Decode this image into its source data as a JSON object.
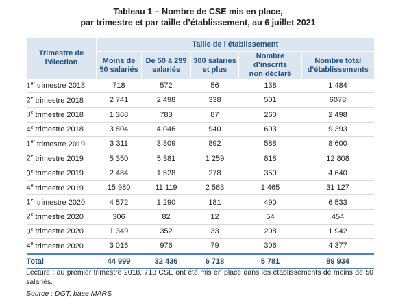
{
  "header": {
    "title": [
      "Tableau 1 – Nombre de CSE mis en place,",
      "par trimestre et par taille d’établissement, au 6 juillet 2021"
    ]
  },
  "table": {
    "group_header": "Taille de l’établissement",
    "columns": [
      [
        "Trimestre de",
        "l’élection"
      ],
      [
        "Moins de",
        "50 salariés"
      ],
      [
        "De 50 à 299",
        "salariés"
      ],
      [
        "300 salariés",
        "et plus"
      ],
      [
        "Nombre d’inscrits",
        "non déclaré"
      ],
      [
        "Nombre total",
        "d’établissements"
      ]
    ],
    "rows": [
      {
        "period": {
          "number": "1",
          "suffix": "er",
          "text": "trimestre 2018"
        },
        "cells": [
          "718",
          "572",
          "56",
          "138",
          "1 484"
        ]
      },
      {
        "period": {
          "number": "2",
          "suffix": "e",
          "text": "trimestre 2018"
        },
        "cells": [
          "2 741",
          "2 498",
          "338",
          "501",
          "6078"
        ]
      },
      {
        "period": {
          "number": "3",
          "suffix": "e",
          "text": "trimestre 2018"
        },
        "cells": [
          "1 368",
          "783",
          "87",
          "260",
          "2 498"
        ]
      },
      {
        "period": {
          "number": "4",
          "suffix": "e",
          "text": "trimestre 2018"
        },
        "cells": [
          "3 804",
          "4 046",
          "940",
          "603",
          "9 393"
        ]
      },
      {
        "period": {
          "number": "1",
          "suffix": "er",
          "text": "trimestre 2019"
        },
        "cells": [
          "3 311",
          "3 809",
          "892",
          "588",
          "8 600"
        ]
      },
      {
        "period": {
          "number": "2",
          "suffix": "e",
          "text": "trimestre 2019"
        },
        "cells": [
          "5 350",
          "5 381",
          "1 259",
          "818",
          "12 808"
        ]
      },
      {
        "period": {
          "number": "3",
          "suffix": "e",
          "text": "trimestre 2019"
        },
        "cells": [
          "2 484",
          "1 528",
          "278",
          "350",
          "4 640"
        ]
      },
      {
        "period": {
          "number": "4",
          "suffix": "e",
          "text": "trimestre 2019"
        },
        "cells": [
          "15 980",
          "11 119",
          "2 563",
          "1 465",
          "31 127"
        ]
      },
      {
        "period": {
          "number": "1",
          "suffix": "er",
          "text": "trimestre 2020"
        },
        "cells": [
          "4 572",
          "1 290",
          "181",
          "490",
          "6 533"
        ]
      },
      {
        "period": {
          "number": "2",
          "suffix": "e",
          "text": "trimestre 2020"
        },
        "cells": [
          "306",
          "82",
          "12",
          "54",
          "454"
        ]
      },
      {
        "period": {
          "number": "3",
          "suffix": "e",
          "text": "trimestre 2020"
        },
        "cells": [
          "1 349",
          "352",
          "33",
          "208",
          "1 942"
        ]
      },
      {
        "period": {
          "number": "4",
          "suffix": "e",
          "text": "trimestre 2020"
        },
        "cells": [
          "3 016",
          "976",
          "79",
          "306",
          "4 377"
        ]
      }
    ],
    "total": {
      "label": "Total",
      "cells": [
        "44 999",
        "32 436",
        "6 718",
        "5 781",
        "89 934"
      ]
    }
  },
  "notes": {
    "lecture": "Lecture : au premier trimestre 2018, 718 CSE ont été mis en place dans les établissements de moins de 50 salariés.",
    "source": "Source : DGT, base MARS"
  }
}
